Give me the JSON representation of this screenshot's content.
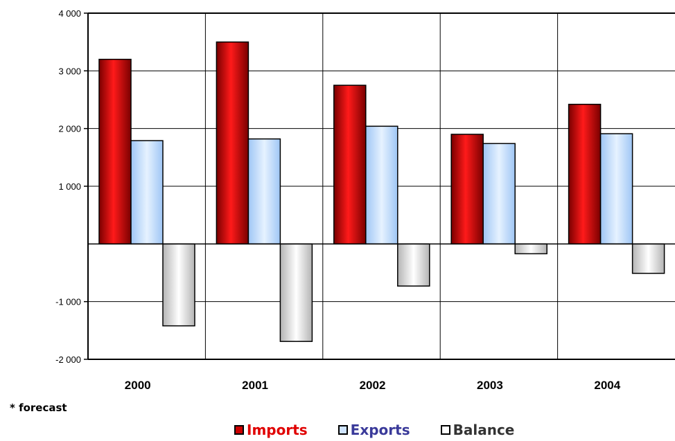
{
  "chart_data": {
    "type": "bar",
    "categories": [
      "2000",
      "2001",
      "2002",
      "2003",
      "2004"
    ],
    "series": [
      {
        "name": "Imports",
        "values": [
          3200,
          3500,
          2750,
          1900,
          2420
        ],
        "color": "#cc0000"
      },
      {
        "name": "Exports",
        "values": [
          1790,
          1820,
          2040,
          1740,
          1910
        ],
        "color": "#b8d8ff"
      },
      {
        "name": "Balance",
        "values": [
          -1420,
          -1690,
          -730,
          -170,
          -510
        ],
        "color": "#d8d8d8"
      }
    ],
    "ylim": [
      -2000,
      4000
    ],
    "yticks": [
      4000,
      3000,
      2000,
      1000,
      -1000,
      -2000
    ],
    "ytick_labels": [
      "4 000",
      "3 000",
      "2 000",
      "1 000",
      "-1 000",
      "-2 000"
    ],
    "grid": true,
    "legend": "bottom-center",
    "note": "* forecast"
  }
}
